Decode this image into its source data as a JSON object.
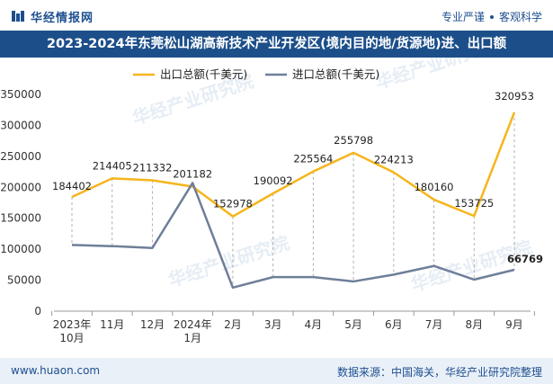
{
  "header": {
    "brand": "华经情报网",
    "tag1": "专业严谨",
    "tag2": "客观科学"
  },
  "chart_title": "2023-2024年东莞松山湖高新技术产业开发区(境内目的地/货源地)进、出口额",
  "footer": {
    "site": "www.huaon.com",
    "source": "数据来源：中国海关，华经产业研究院整理"
  },
  "watermark": "华经产业研究院",
  "colors": {
    "export": "#f5b51c",
    "import": "#6e7f99",
    "title_bg": "#1c4f8a",
    "brand": "#1d4f8f"
  },
  "chart_data": {
    "type": "line",
    "categories": [
      "2023年\n10月",
      "11月",
      "12月",
      "2024年\n1月",
      "2月",
      "3月",
      "4月",
      "5月",
      "6月",
      "7月",
      "8月",
      "9月"
    ],
    "ylim": [
      0,
      350000
    ],
    "yticks": [
      0,
      50000,
      100000,
      150000,
      200000,
      250000,
      300000,
      350000
    ],
    "legend_position": "top-left",
    "series": [
      {
        "name": "出口总额(千美元)",
        "values": [
          184402,
          214405,
          211332,
          201182,
          152978,
          190092,
          225564,
          255798,
          224213,
          180160,
          153725,
          320953
        ],
        "labels": [
          "184402",
          "214405",
          "211332",
          "201182",
          "152978",
          "190092",
          "225564",
          "255798",
          "224213",
          "180160",
          "153725",
          "320953"
        ]
      },
      {
        "name": "进口总额(千美元)",
        "values": [
          107000,
          105000,
          102000,
          207000,
          38000,
          55000,
          55000,
          48000,
          59000,
          73000,
          51000,
          66769
        ],
        "labels": [
          "",
          "",
          "",
          "",
          "",
          "",
          "",
          "",
          "",
          "",
          "",
          "66769"
        ]
      }
    ]
  }
}
